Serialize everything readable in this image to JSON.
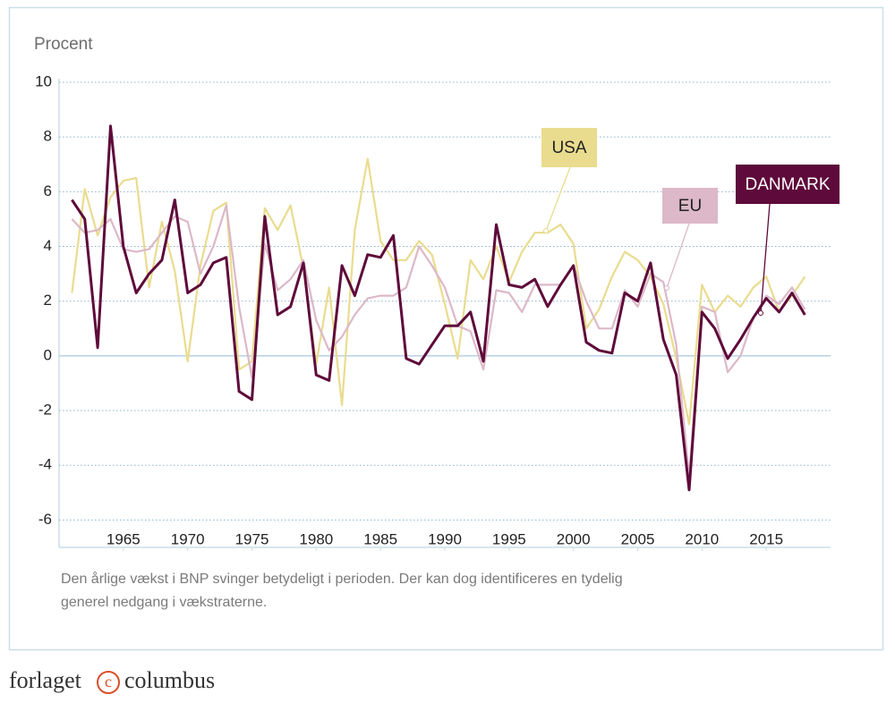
{
  "chart_data": {
    "type": "line",
    "y_label": "Procent",
    "x": [
      1961,
      1962,
      1963,
      1964,
      1965,
      1966,
      1967,
      1968,
      1969,
      1970,
      1971,
      1972,
      1973,
      1974,
      1975,
      1976,
      1977,
      1978,
      1979,
      1980,
      1981,
      1982,
      1983,
      1984,
      1985,
      1986,
      1987,
      1988,
      1989,
      1990,
      1991,
      1992,
      1993,
      1994,
      1995,
      1996,
      1997,
      1998,
      1999,
      2000,
      2001,
      2002,
      2003,
      2004,
      2005,
      2006,
      2007,
      2008,
      2009,
      2010,
      2011,
      2012,
      2013,
      2014,
      2015,
      2016,
      2017,
      2018
    ],
    "series": [
      {
        "name": "USA",
        "color": "#e9dc8f",
        "values": [
          2.3,
          6.1,
          4.4,
          5.8,
          6.4,
          6.5,
          2.5,
          4.9,
          3.1,
          -0.2,
          3.3,
          5.3,
          5.6,
          -0.5,
          -0.2,
          5.4,
          4.6,
          5.5,
          3.2,
          -0.3,
          2.5,
          -1.8,
          4.6,
          7.2,
          4.2,
          3.5,
          3.5,
          4.2,
          3.7,
          1.9,
          -0.1,
          3.5,
          2.8,
          4.0,
          2.7,
          3.8,
          4.5,
          4.5,
          4.8,
          4.1,
          1.0,
          1.7,
          2.9,
          3.8,
          3.5,
          2.9,
          1.9,
          -0.1,
          -2.5,
          2.6,
          1.6,
          2.2,
          1.8,
          2.5,
          2.9,
          1.6,
          2.2,
          2.9
        ]
      },
      {
        "name": "EU",
        "color": "#dcb8c8",
        "values": [
          5.0,
          4.5,
          4.6,
          5.0,
          3.9,
          3.8,
          3.9,
          4.5,
          5.1,
          4.9,
          3.0,
          4.0,
          5.5,
          1.8,
          -0.8,
          4.1,
          2.4,
          2.8,
          3.5,
          1.3,
          0.2,
          0.7,
          1.5,
          2.1,
          2.2,
          2.2,
          2.5,
          4.0,
          3.3,
          2.5,
          1.1,
          0.9,
          -0.5,
          2.4,
          2.3,
          1.6,
          2.6,
          2.6,
          2.6,
          3.3,
          2.0,
          1.0,
          1.0,
          2.4,
          1.8,
          3.0,
          2.7,
          0.4,
          -4.4,
          1.8,
          1.6,
          -0.6,
          0.0,
          1.4,
          2.2,
          1.9,
          2.5,
          1.7
        ]
      },
      {
        "name": "DANMARK",
        "color": "#5e0a3a",
        "values": [
          5.7,
          5.0,
          0.3,
          8.4,
          4.0,
          2.3,
          3.0,
          3.5,
          5.7,
          2.3,
          2.6,
          3.4,
          3.6,
          -1.3,
          -1.6,
          5.1,
          1.5,
          1.8,
          3.4,
          -0.7,
          -0.9,
          3.3,
          2.2,
          3.7,
          3.6,
          4.4,
          -0.1,
          -0.3,
          0.4,
          1.1,
          1.1,
          1.6,
          -0.2,
          4.8,
          2.6,
          2.5,
          2.8,
          1.8,
          2.6,
          3.3,
          0.5,
          0.2,
          0.1,
          2.3,
          2.0,
          3.4,
          0.6,
          -0.7,
          -4.9,
          1.6,
          1.0,
          -0.1,
          0.6,
          1.4,
          2.1,
          1.6,
          2.3,
          1.5
        ]
      }
    ],
    "xlim": [
      1960,
      2020
    ],
    "xticks": [
      1965,
      1970,
      1975,
      1980,
      1985,
      1990,
      1995,
      2000,
      2005,
      2010,
      2015
    ],
    "ylim": [
      -7,
      10
    ],
    "yticks": [
      10,
      8,
      6,
      4,
      2,
      0,
      -2,
      -4,
      -6
    ],
    "grid": true,
    "caption": [
      "Den årlige vækst i BNP svinger betydeligt i perioden. Der kan dog identificeres en tydelig",
      "generel nedgang i vækstraterne."
    ]
  },
  "footer": {
    "left": "forlaget",
    "logo_letter": "c",
    "right": "columbus"
  }
}
